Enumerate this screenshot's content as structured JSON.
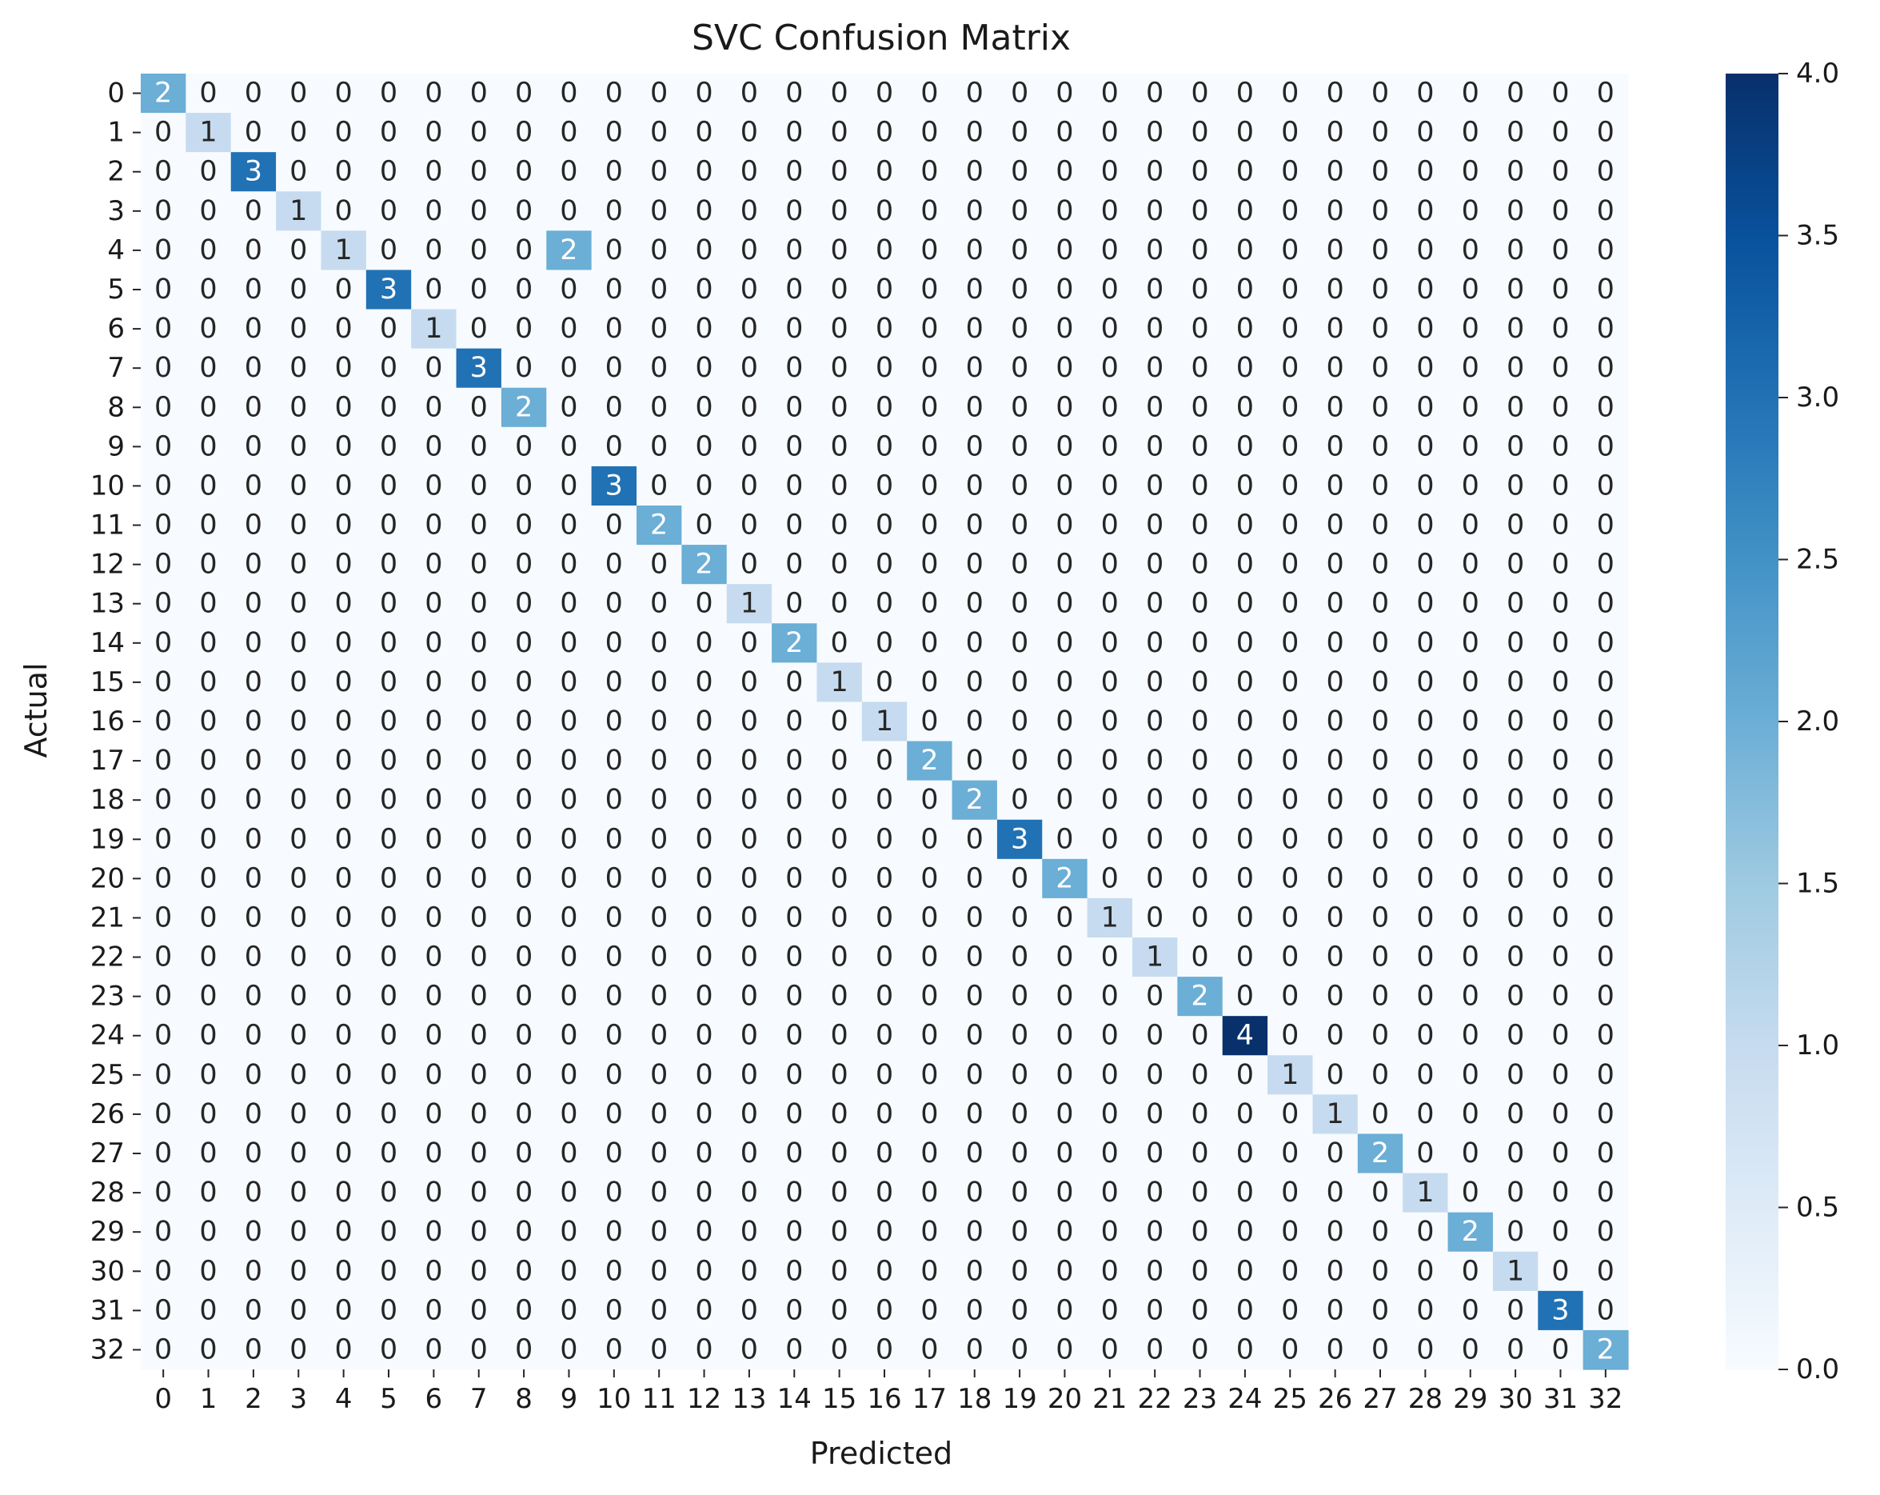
{
  "chart_data": {
    "type": "heatmap",
    "title": "SVC Confusion Matrix",
    "xlabel": "Predicted",
    "ylabel": "Actual",
    "x_categories": [
      "0",
      "1",
      "2",
      "3",
      "4",
      "5",
      "6",
      "7",
      "8",
      "9",
      "10",
      "11",
      "12",
      "13",
      "14",
      "15",
      "16",
      "17",
      "18",
      "19",
      "20",
      "21",
      "22",
      "23",
      "24",
      "25",
      "26",
      "27",
      "28",
      "29",
      "30",
      "31",
      "32"
    ],
    "y_categories": [
      "0",
      "1",
      "2",
      "3",
      "4",
      "5",
      "6",
      "7",
      "8",
      "9",
      "10",
      "11",
      "12",
      "13",
      "14",
      "15",
      "16",
      "17",
      "18",
      "19",
      "20",
      "21",
      "22",
      "23",
      "24",
      "25",
      "26",
      "27",
      "28",
      "29",
      "30",
      "31",
      "32"
    ],
    "diagonal_values": [
      2,
      1,
      3,
      1,
      1,
      3,
      1,
      3,
      2,
      0,
      3,
      2,
      2,
      1,
      2,
      1,
      1,
      2,
      2,
      3,
      2,
      1,
      1,
      2,
      4,
      1,
      1,
      2,
      1,
      2,
      1,
      3,
      2
    ],
    "off_diagonal_nonzero": [
      {
        "row": 4,
        "col": 9,
        "value": 2
      }
    ],
    "default_value": 0,
    "colormap": "Blues",
    "value_range": [
      0,
      4
    ],
    "colorbar_ticks": [
      "0.0",
      "0.5",
      "1.0",
      "1.5",
      "2.0",
      "2.5",
      "3.0",
      "3.5",
      "4.0"
    ],
    "annotated": true
  }
}
